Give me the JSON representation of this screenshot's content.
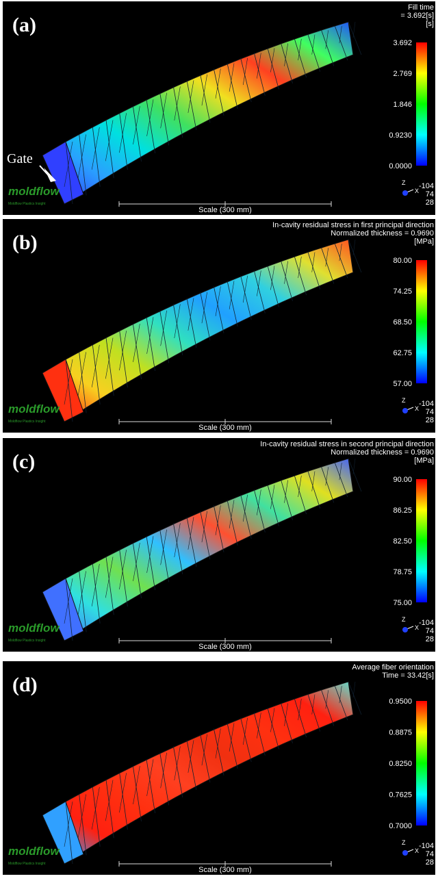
{
  "panels": [
    {
      "label": "(a)",
      "title_lines": [
        "Fill time",
        "= 3.692[s]",
        "[s]"
      ],
      "legend_ticks": [
        "3.692",
        "2.769",
        "1.846",
        "0.9230",
        "0.0000"
      ],
      "annotation": "Gate"
    },
    {
      "label": "(b)",
      "title_lines": [
        "In-cavity residual stress in first principal direction",
        "Normalized thickness = 0.9690",
        "[MPa]"
      ],
      "legend_ticks": [
        "80.00",
        "74.25",
        "68.50",
        "62.75",
        "57.00"
      ]
    },
    {
      "label": "(c)",
      "title_lines": [
        "In-cavity residual stress in second principal direction",
        "Normalized thickness = 0.9690",
        "[MPa]"
      ],
      "legend_ticks": [
        "90.00",
        "86.25",
        "82.50",
        "78.75",
        "75.00"
      ]
    },
    {
      "label": "(d)",
      "title_lines": [
        "Average fiber orientation",
        "Time = 33.42[s]"
      ],
      "legend_ticks": [
        "0.9500",
        "0.8875",
        "0.8250",
        "0.7625",
        "0.7000"
      ]
    }
  ],
  "scale_label": "Scale (300 mm)",
  "logo": "moldflow",
  "logo_sub": "Moldflow Plastics Insight",
  "axis_letters": [
    "Z",
    "X"
  ],
  "axis_values": [
    "-104",
    "74",
    "28"
  ]
}
